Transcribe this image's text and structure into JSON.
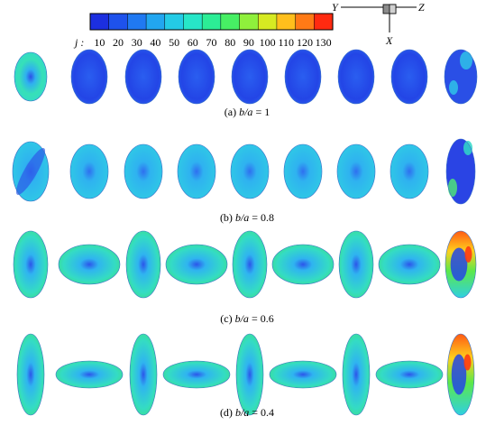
{
  "colorbar": {
    "variable_label": "j :",
    "ticks": [
      "10",
      "20",
      "30",
      "40",
      "50",
      "60",
      "70",
      "80",
      "90",
      "100",
      "110",
      "120",
      "130"
    ],
    "colors": [
      "#1c2fe0",
      "#1e52ec",
      "#2079f2",
      "#22a6f0",
      "#24cbe6",
      "#27e6c8",
      "#2ced96",
      "#47ef64",
      "#8ff03c",
      "#d6ea22",
      "#ffbf1c",
      "#ff7a16",
      "#ff2a10"
    ]
  },
  "axes_icon": {
    "y_label": "Y",
    "z_label": "Z",
    "x_label": "X"
  },
  "rows": [
    {
      "caption_prefix": "(a)",
      "caption_ratio": "b/a",
      "caption_value": "= 1",
      "shapes": [
        "circle-front",
        "circle",
        "circle",
        "circle",
        "circle",
        "circle",
        "circle",
        "circle",
        "circle-back"
      ]
    },
    {
      "caption_prefix": "(b)",
      "caption_ratio": "b/a",
      "caption_value": "= 0.8",
      "shapes": [
        "ellipse-tilted",
        "ellipse",
        "ellipse",
        "ellipse",
        "ellipse",
        "ellipse",
        "ellipse",
        "ellipse",
        "ellipse-back"
      ]
    },
    {
      "caption_prefix": "(c)",
      "caption_ratio": "b/a",
      "caption_value": "= 0.6",
      "shapes": [
        "vertical",
        "horizontal",
        "vertical",
        "horizontal",
        "vertical",
        "horizontal",
        "vertical",
        "horizontal",
        "vertical-back"
      ]
    },
    {
      "caption_prefix": "(d)",
      "caption_ratio": "b/a",
      "caption_value": "= 0.4",
      "shapes": [
        "vertical",
        "horizontal",
        "vertical",
        "horizontal",
        "vertical",
        "horizontal",
        "vertical",
        "horizontal",
        "vertical-back"
      ]
    }
  ]
}
